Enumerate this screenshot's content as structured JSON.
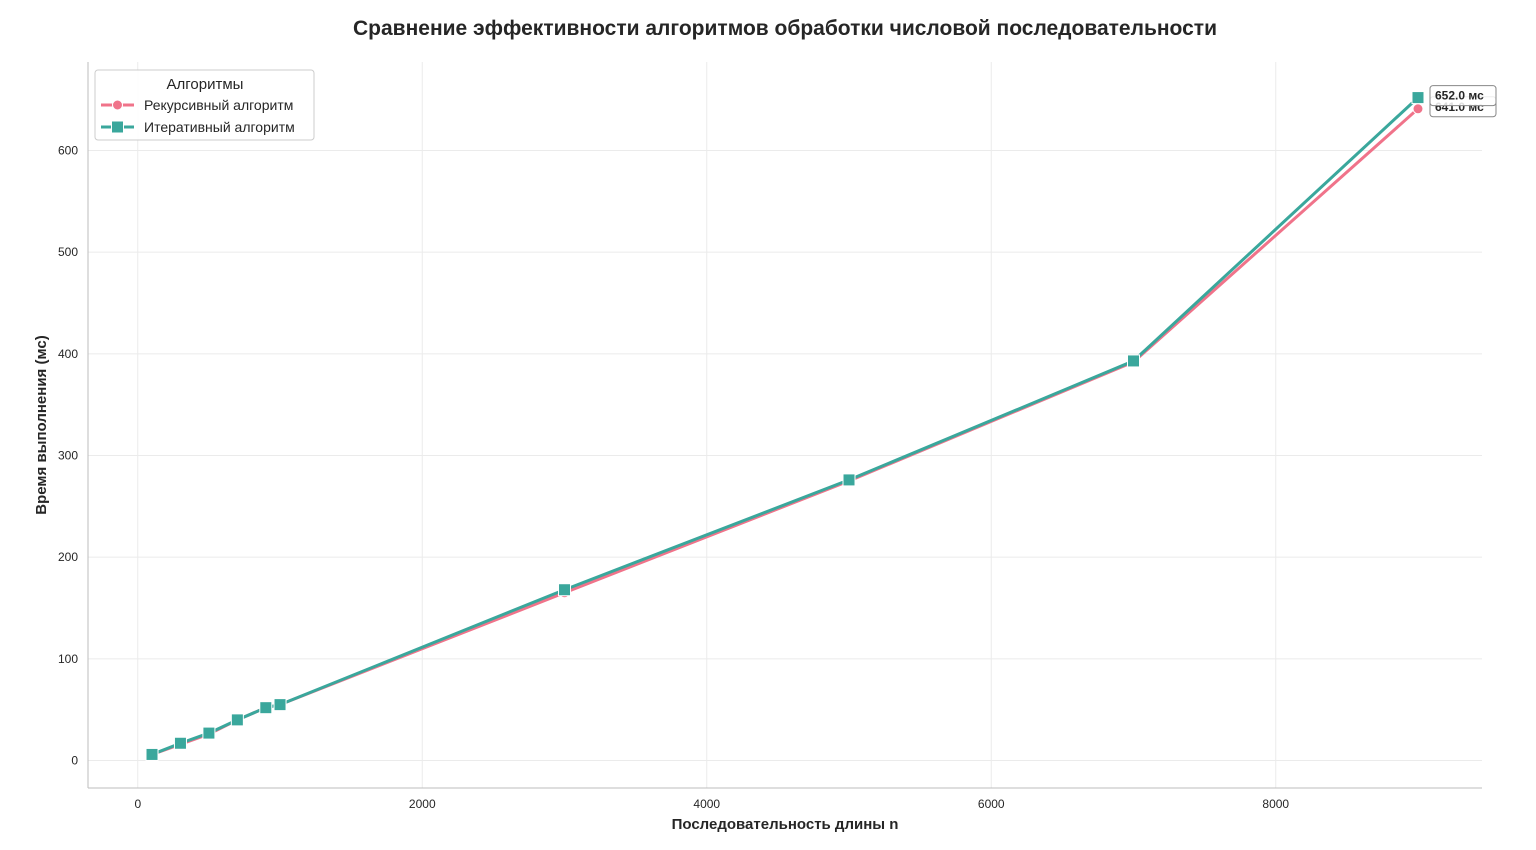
{
  "chart_data": {
    "type": "line",
    "title": "Сравнение эффективности алгоритмов обработки числовой последовательности",
    "xlabel": "Последовательность длины n",
    "ylabel": "Время выполнения (мс)",
    "xlim": [
      -350,
      9450
    ],
    "ylim": [
      -27,
      687
    ],
    "x_ticks": [
      0,
      2000,
      4000,
      6000,
      8000
    ],
    "y_ticks": [
      0,
      100,
      200,
      300,
      400,
      500,
      600
    ],
    "grid": true,
    "legend": {
      "title": "Алгоритмы",
      "position": "top-left"
    },
    "x": [
      100,
      300,
      500,
      700,
      900,
      1000,
      3000,
      5000,
      7000,
      9000
    ],
    "series": [
      {
        "name": "Рекурсивный алгоритм",
        "color": "#f0738a",
        "marker": "circle",
        "values": [
          6,
          16,
          26,
          40,
          52,
          55,
          165,
          275,
          392,
          641
        ]
      },
      {
        "name": "Итеративный алгоритм",
        "color": "#3aa79c",
        "marker": "square",
        "values": [
          6,
          17,
          27,
          40,
          52,
          55,
          168,
          276,
          393,
          652
        ]
      }
    ],
    "annotations": [
      {
        "series": 0,
        "x": 9000,
        "y": 641,
        "text": "641.0 мс"
      },
      {
        "series": 1,
        "x": 9000,
        "y": 652,
        "text": "652.0 мс"
      }
    ]
  }
}
